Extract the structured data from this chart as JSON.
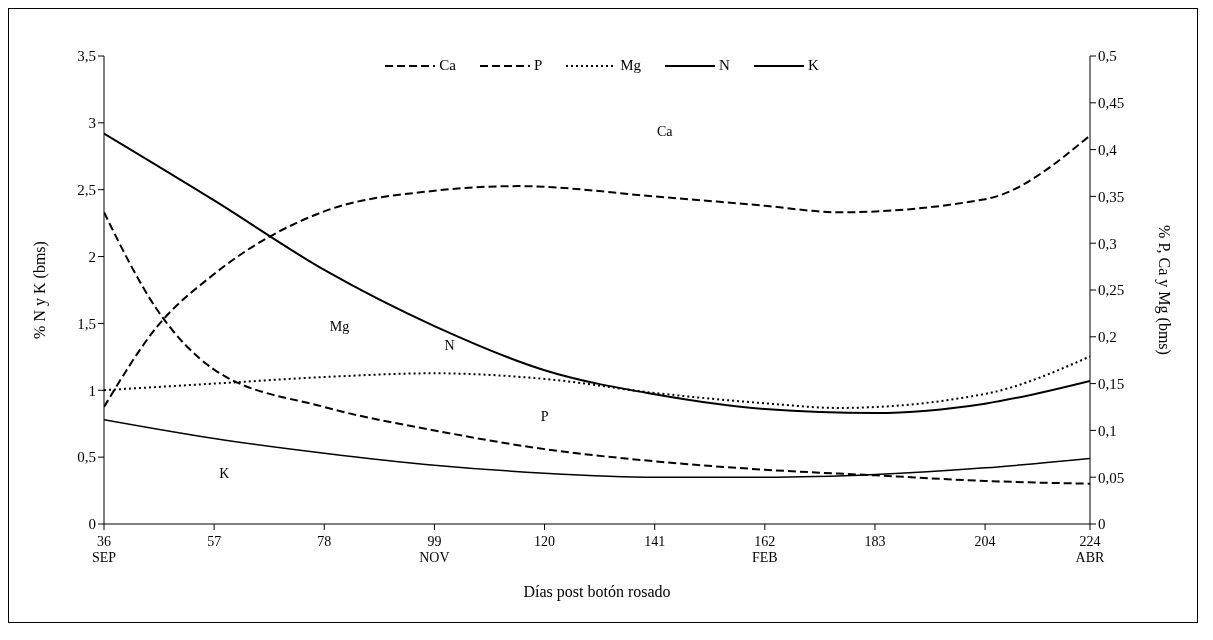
{
  "chart_data": {
    "type": "line",
    "xlabel": "Días post botón rosado",
    "ylabel": "% N y K (bms)",
    "y2label": "% P, Ca y Mg (bms)",
    "legend": "top",
    "grid": false,
    "marker": "none",
    "xlim": [
      36,
      224
    ],
    "xticks": [
      {
        "value": 36,
        "label": "36\nSEP"
      },
      57,
      78,
      {
        "value": 99,
        "label": "99\nNOV"
      },
      120,
      141,
      {
        "value": 162,
        "label": "162\nFEB"
      },
      183,
      204,
      {
        "value": 224,
        "label": "224\nABR"
      }
    ],
    "ylim": [
      0,
      3.5
    ],
    "yticks": [
      0,
      {
        "value": 0.5,
        "label": "0,5"
      },
      1,
      {
        "value": 1.5,
        "label": "1,5"
      },
      2,
      {
        "value": 2.5,
        "label": "2,5"
      },
      3,
      {
        "value": 3.5,
        "label": "3,5"
      }
    ],
    "y2lim": [
      0,
      0.5
    ],
    "y2ticks": [
      0,
      {
        "value": 0.05,
        "label": "0,05"
      },
      {
        "value": 0.1,
        "label": "0,1"
      },
      {
        "value": 0.15,
        "label": "0,15"
      },
      {
        "value": 0.2,
        "label": "0,2"
      },
      {
        "value": 0.25,
        "label": "0,25"
      },
      {
        "value": 0.3,
        "label": "0,3"
      },
      {
        "value": 0.35,
        "label": "0,35"
      },
      {
        "value": 0.4,
        "label": "0,4"
      },
      {
        "value": 0.45,
        "label": "0,45"
      },
      {
        "value": 0.5,
        "label": "0,5"
      }
    ],
    "series": [
      {
        "name": "Ca",
        "color": "#000000",
        "axis": "y2",
        "line_style": "dashed",
        "x": [
          36,
          46,
          57,
          78,
          99,
          115,
          141,
          162,
          176,
          204,
          224
        ],
        "values": [
          0.125,
          0.21,
          0.267,
          0.334,
          0.356,
          0.361,
          0.35,
          0.34,
          0.333,
          0.347,
          0.415
        ]
      },
      {
        "name": "P",
        "color": "#000000",
        "axis": "y2",
        "line_style": "dashed",
        "x": [
          36,
          46,
          57,
          78,
          99,
          120,
          141,
          162,
          183,
          204,
          224
        ],
        "values": [
          0.333,
          0.23,
          0.165,
          0.125,
          0.1,
          0.08,
          0.067,
          0.058,
          0.052,
          0.046,
          0.043
        ]
      },
      {
        "name": "Mg",
        "color": "#000000",
        "axis": "y2",
        "line_style": "dotted",
        "x": [
          36,
          57,
          78,
          99,
          120,
          141,
          162,
          176,
          204,
          224
        ],
        "values": [
          0.143,
          0.15,
          0.157,
          0.161,
          0.155,
          0.14,
          0.129,
          0.124,
          0.139,
          0.179
        ]
      },
      {
        "name": "N",
        "color": "#000000",
        "line_style": "solid",
        "x": [
          36,
          57,
          78,
          99,
          120,
          141,
          162,
          183,
          204,
          224
        ],
        "values": [
          2.92,
          2.42,
          1.9,
          1.48,
          1.15,
          0.97,
          0.86,
          0.83,
          0.9,
          1.07
        ]
      },
      {
        "name": "K",
        "color": "#000000",
        "line_style": "solid",
        "x": [
          36,
          57,
          78,
          99,
          120,
          141,
          162,
          183,
          204,
          224
        ],
        "values": [
          0.78,
          0.64,
          0.53,
          0.44,
          0.38,
          0.35,
          0.35,
          0.37,
          0.42,
          0.49
        ]
      }
    ]
  }
}
